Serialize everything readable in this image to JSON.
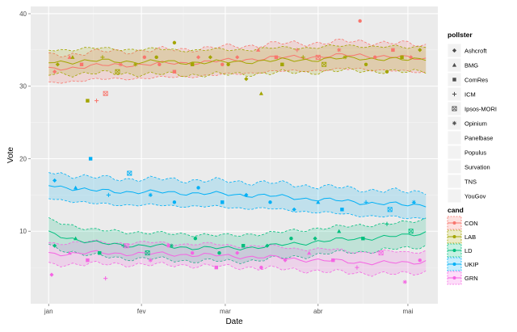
{
  "chart_data": {
    "type": "line",
    "xlabel": "Date",
    "ylabel": "Vote",
    "x_range": [
      "2014-12-26",
      "2015-05-11"
    ],
    "ylim": [
      0,
      41
    ],
    "x_ticks": [
      {
        "date": "2015-01-01",
        "label": "jan"
      },
      {
        "date": "2015-02-01",
        "label": "fev"
      },
      {
        "date": "2015-03-01",
        "label": "mar"
      },
      {
        "date": "2015-04-01",
        "label": "abr"
      },
      {
        "date": "2015-05-01",
        "label": "mai"
      }
    ],
    "y_ticks": [
      10,
      20,
      30,
      40
    ],
    "grid": true,
    "background": "#ebebeb",
    "pollster_legend": {
      "title": "pollster",
      "items": [
        {
          "name": "Ashcroft",
          "shape": "diamond"
        },
        {
          "name": "BMG",
          "shape": "triangle"
        },
        {
          "name": "ComRes",
          "shape": "square"
        },
        {
          "name": "ICM",
          "shape": "plus"
        },
        {
          "name": "Ipsos-MORI",
          "shape": "boxed-x"
        },
        {
          "name": "Opinium",
          "shape": "asterisk"
        },
        {
          "name": "Panelbase",
          "shape": "none"
        },
        {
          "name": "Populus",
          "shape": "none"
        },
        {
          "name": "Survation",
          "shape": "none"
        },
        {
          "name": "TNS",
          "shape": "none"
        },
        {
          "name": "YouGov",
          "shape": "none"
        }
      ]
    },
    "cand_legend": {
      "title": "cand",
      "placement": "right"
    },
    "series": [
      {
        "name": "CON",
        "color": "#F8766D",
        "trend": {
          "x": [
            "2015-01-01",
            "2015-01-15",
            "2015-02-01",
            "2015-02-15",
            "2015-03-01",
            "2015-03-15",
            "2015-04-01",
            "2015-04-15",
            "2015-05-01",
            "2015-05-07"
          ],
          "y": [
            32.3,
            32.8,
            33.0,
            33.2,
            33.5,
            33.9,
            34.1,
            34.3,
            33.9,
            33.8
          ]
        },
        "band_halfwidth": 1.9,
        "points": [
          [
            "2015-01-03",
            32
          ],
          [
            "2015-01-08",
            34
          ],
          [
            "2015-01-12",
            33
          ],
          [
            "2015-01-17",
            28
          ],
          [
            "2015-01-20",
            29
          ],
          [
            "2015-01-25",
            33
          ],
          [
            "2015-02-02",
            34
          ],
          [
            "2015-02-07",
            33
          ],
          [
            "2015-02-12",
            32
          ],
          [
            "2015-02-20",
            34
          ],
          [
            "2015-02-28",
            33
          ],
          [
            "2015-03-05",
            34
          ],
          [
            "2015-03-12",
            35
          ],
          [
            "2015-03-18",
            34
          ],
          [
            "2015-03-25",
            35
          ],
          [
            "2015-04-01",
            34
          ],
          [
            "2015-04-08",
            35
          ],
          [
            "2015-04-15",
            39
          ],
          [
            "2015-04-20",
            34
          ],
          [
            "2015-04-26",
            35
          ],
          [
            "2015-05-02",
            34
          ]
        ]
      },
      {
        "name": "LAB",
        "color": "#A3A500",
        "trend": {
          "x": [
            "2015-01-01",
            "2015-01-15",
            "2015-02-01",
            "2015-02-15",
            "2015-03-01",
            "2015-03-15",
            "2015-04-01",
            "2015-04-15",
            "2015-05-01",
            "2015-05-07"
          ],
          "y": [
            33.3,
            33.5,
            33.4,
            33.3,
            33.3,
            33.5,
            33.7,
            33.9,
            33.6,
            33.9
          ]
        },
        "band_halfwidth": 1.7,
        "points": [
          [
            "2015-01-04",
            33
          ],
          [
            "2015-01-09",
            34
          ],
          [
            "2015-01-14",
            28
          ],
          [
            "2015-01-19",
            34
          ],
          [
            "2015-01-24",
            32
          ],
          [
            "2015-01-30",
            33
          ],
          [
            "2015-02-06",
            34
          ],
          [
            "2015-02-12",
            36
          ],
          [
            "2015-02-18",
            33
          ],
          [
            "2015-02-24",
            34
          ],
          [
            "2015-03-02",
            33
          ],
          [
            "2015-03-08",
            31
          ],
          [
            "2015-03-13",
            29
          ],
          [
            "2015-03-20",
            33
          ],
          [
            "2015-03-27",
            34
          ],
          [
            "2015-04-03",
            33
          ],
          [
            "2015-04-10",
            34
          ],
          [
            "2015-04-17",
            33
          ],
          [
            "2015-04-24",
            32
          ],
          [
            "2015-04-29",
            34
          ],
          [
            "2015-05-05",
            35
          ]
        ]
      },
      {
        "name": "LD",
        "color": "#00BF7D",
        "trend": {
          "x": [
            "2015-01-01",
            "2015-01-15",
            "2015-02-01",
            "2015-02-15",
            "2015-03-01",
            "2015-03-15",
            "2015-04-01",
            "2015-04-15",
            "2015-05-01",
            "2015-05-07"
          ],
          "y": [
            9.8,
            8.4,
            8.0,
            7.8,
            7.6,
            7.9,
            8.6,
            9.0,
            9.4,
            9.9
          ]
        },
        "band_halfwidth": 1.8,
        "points": [
          [
            "2015-01-03",
            8
          ],
          [
            "2015-01-10",
            9
          ],
          [
            "2015-01-18",
            7
          ],
          [
            "2015-01-26",
            8
          ],
          [
            "2015-02-03",
            7
          ],
          [
            "2015-02-11",
            8
          ],
          [
            "2015-02-19",
            9
          ],
          [
            "2015-02-27",
            7
          ],
          [
            "2015-03-07",
            8
          ],
          [
            "2015-03-15",
            8
          ],
          [
            "2015-03-23",
            9
          ],
          [
            "2015-03-31",
            9
          ],
          [
            "2015-04-08",
            10
          ],
          [
            "2015-04-16",
            9
          ],
          [
            "2015-04-24",
            11
          ],
          [
            "2015-05-02",
            10
          ]
        ]
      },
      {
        "name": "UKIP",
        "color": "#00B0F6",
        "trend": {
          "x": [
            "2015-01-01",
            "2015-01-15",
            "2015-02-01",
            "2015-02-15",
            "2015-03-01",
            "2015-03-15",
            "2015-04-01",
            "2015-04-15",
            "2015-05-01",
            "2015-05-07"
          ],
          "y": [
            16.4,
            15.6,
            15.4,
            15.3,
            15.1,
            14.9,
            14.4,
            14.0,
            13.6,
            13.7
          ]
        },
        "band_halfwidth": 1.8,
        "points": [
          [
            "2015-01-03",
            17
          ],
          [
            "2015-01-10",
            16
          ],
          [
            "2015-01-15",
            20
          ],
          [
            "2015-01-21",
            15
          ],
          [
            "2015-01-28",
            18
          ],
          [
            "2015-02-04",
            15
          ],
          [
            "2015-02-12",
            14
          ],
          [
            "2015-02-20",
            16
          ],
          [
            "2015-02-28",
            14
          ],
          [
            "2015-03-08",
            15
          ],
          [
            "2015-03-16",
            14
          ],
          [
            "2015-03-24",
            13
          ],
          [
            "2015-04-01",
            14
          ],
          [
            "2015-04-09",
            13
          ],
          [
            "2015-04-17",
            14
          ],
          [
            "2015-04-25",
            13
          ],
          [
            "2015-05-03",
            14
          ]
        ]
      },
      {
        "name": "GRN",
        "color": "#F564E3",
        "trend": {
          "x": [
            "2015-01-01",
            "2015-01-15",
            "2015-02-01",
            "2015-02-15",
            "2015-03-01",
            "2015-03-15",
            "2015-04-01",
            "2015-04-15",
            "2015-05-01",
            "2015-05-07"
          ],
          "y": [
            6.9,
            7.0,
            6.9,
            6.8,
            6.6,
            6.4,
            6.0,
            5.7,
            5.6,
            5.9
          ]
        },
        "band_halfwidth": 1.5,
        "points": [
          [
            "2015-01-02",
            4
          ],
          [
            "2015-01-08",
            7
          ],
          [
            "2015-01-14",
            6
          ],
          [
            "2015-01-20",
            3.5
          ],
          [
            "2015-01-27",
            8
          ],
          [
            "2015-02-04",
            6
          ],
          [
            "2015-02-10",
            8
          ],
          [
            "2015-02-18",
            7
          ],
          [
            "2015-02-26",
            5
          ],
          [
            "2015-03-05",
            7
          ],
          [
            "2015-03-13",
            5
          ],
          [
            "2015-03-21",
            6
          ],
          [
            "2015-03-29",
            7
          ],
          [
            "2015-04-06",
            6
          ],
          [
            "2015-04-14",
            5
          ],
          [
            "2015-04-22",
            7
          ],
          [
            "2015-04-30",
            3
          ],
          [
            "2015-05-05",
            6
          ]
        ]
      }
    ]
  }
}
